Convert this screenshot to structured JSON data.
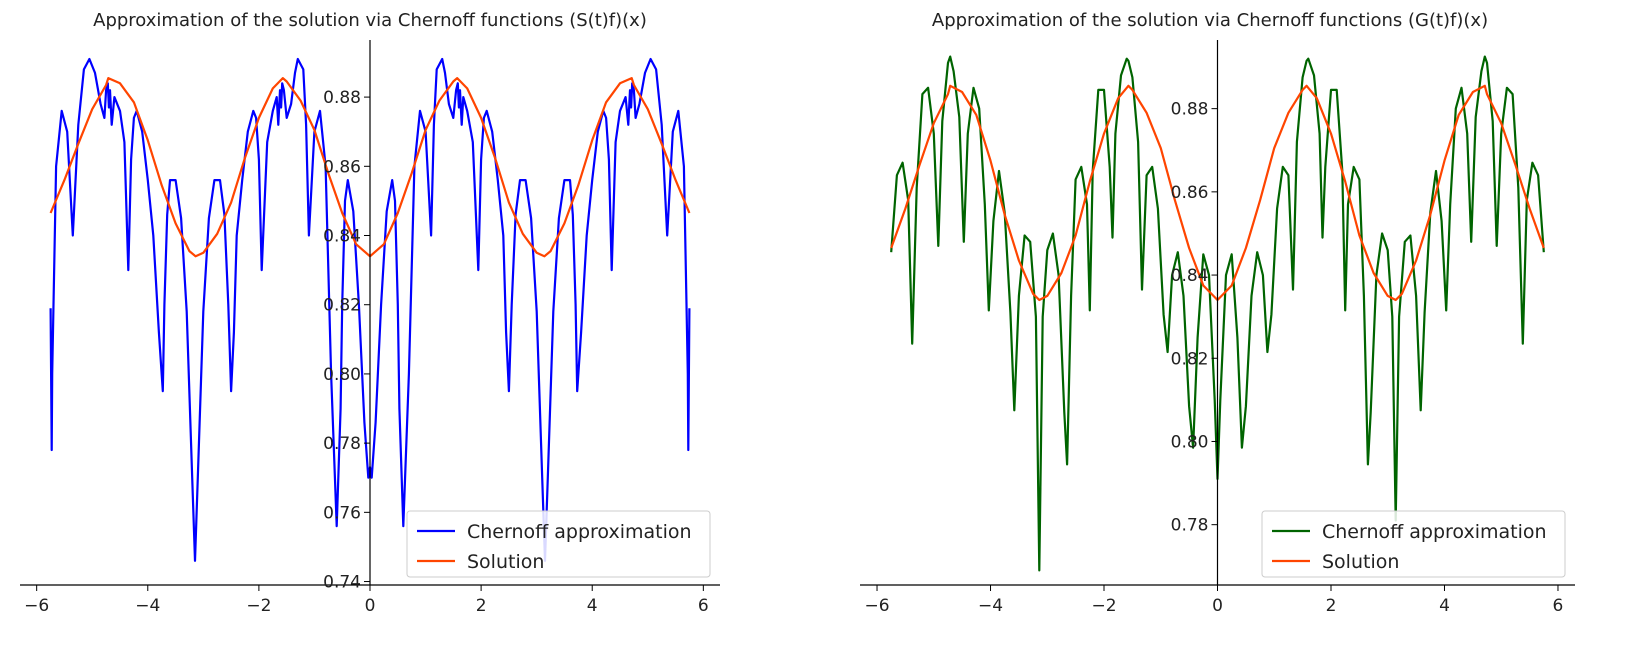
{
  "chart_data": [
    {
      "type": "line",
      "title": "Approximation of the solution via Chernoff functions (S(t)f)(x)",
      "xlim": [
        -6.3,
        6.3
      ],
      "ylim": [
        0.739,
        0.8965
      ],
      "x_ticks": [
        -6,
        -4,
        -2,
        0,
        2,
        4,
        6
      ],
      "x_tick_labels": [
        "−6",
        "−4",
        "−2",
        "0",
        "2",
        "4",
        "6"
      ],
      "y_ticks": [
        0.74,
        0.76,
        0.78,
        0.8,
        0.82,
        0.84,
        0.86,
        0.88
      ],
      "y_tick_labels": [
        "0.74",
        "0.76",
        "0.78",
        "0.80",
        "0.82",
        "0.84",
        "0.86",
        "0.88"
      ],
      "grid": false,
      "legend_location": "lower right",
      "series": [
        {
          "name": "Chernoff approximation",
          "color": "#0000ff",
          "x": [
            -5.75,
            -5.73,
            -5.72,
            -5.65,
            -5.55,
            -5.45,
            -5.35,
            -5.25,
            -5.15,
            -5.05,
            -4.95,
            -4.85,
            -4.78,
            -4.75,
            -4.72,
            -4.7,
            -4.68,
            -4.65,
            -4.6,
            -4.5,
            -4.42,
            -4.35,
            -4.3,
            -4.25,
            -4.2,
            -4.1,
            -4.0,
            -3.9,
            -3.8,
            -3.73,
            -3.7,
            -3.65,
            -3.6,
            -3.5,
            -3.4,
            -3.3,
            -3.2,
            -3.15,
            -3.1,
            -3.0,
            -2.9,
            -2.8,
            -2.7,
            -2.62,
            -2.55,
            -2.5,
            -2.45,
            -2.4,
            -2.3,
            -2.2,
            -2.1,
            -2.05,
            -2.0,
            -1.95,
            -1.85,
            -1.75,
            -1.68,
            -1.65,
            -1.62,
            -1.6,
            -1.58,
            -1.55,
            -1.5,
            -1.42,
            -1.35,
            -1.3,
            -1.2,
            -1.15,
            -1.1,
            -1.0,
            -0.9,
            -0.8,
            -0.7,
            -0.6,
            -0.53,
            -0.5,
            -0.45,
            -0.4,
            -0.3,
            -0.2,
            -0.1,
            -0.03,
            0.0,
            0.03,
            0.1,
            0.2,
            0.3,
            0.4,
            0.45,
            0.5,
            0.53,
            0.6,
            0.7,
            0.8,
            0.9,
            1.0,
            1.1,
            1.15,
            1.2,
            1.3,
            1.35,
            1.42,
            1.5,
            1.55,
            1.58,
            1.6,
            1.62,
            1.65,
            1.68,
            1.75,
            1.85,
            1.95,
            2.0,
            2.05,
            2.1,
            2.2,
            2.3,
            2.4,
            2.45,
            2.5,
            2.55,
            2.62,
            2.7,
            2.8,
            2.9,
            3.0,
            3.1,
            3.15,
            3.2,
            3.3,
            3.4,
            3.5,
            3.6,
            3.65,
            3.7,
            3.73,
            3.8,
            3.9,
            4.0,
            4.1,
            4.2,
            4.25,
            4.3,
            4.35,
            4.42,
            4.5,
            4.6,
            4.65,
            4.68,
            4.7,
            4.72,
            4.75,
            4.78,
            4.85,
            4.95,
            5.05,
            5.15,
            5.25,
            5.35,
            5.45,
            5.55,
            5.65,
            5.72,
            5.73,
            5.75
          ],
          "y": [
            0.819,
            0.778,
            0.8,
            0.86,
            0.876,
            0.87,
            0.84,
            0.872,
            0.888,
            0.891,
            0.887,
            0.878,
            0.874,
            0.882,
            0.884,
            0.877,
            0.882,
            0.872,
            0.88,
            0.876,
            0.867,
            0.83,
            0.862,
            0.874,
            0.876,
            0.87,
            0.856,
            0.84,
            0.812,
            0.795,
            0.82,
            0.846,
            0.856,
            0.856,
            0.845,
            0.818,
            0.77,
            0.746,
            0.77,
            0.818,
            0.845,
            0.856,
            0.856,
            0.846,
            0.82,
            0.795,
            0.812,
            0.84,
            0.856,
            0.87,
            0.876,
            0.874,
            0.862,
            0.83,
            0.867,
            0.876,
            0.88,
            0.872,
            0.882,
            0.877,
            0.884,
            0.882,
            0.874,
            0.878,
            0.887,
            0.891,
            0.888,
            0.872,
            0.84,
            0.87,
            0.876,
            0.86,
            0.8,
            0.756,
            0.79,
            0.82,
            0.85,
            0.856,
            0.847,
            0.82,
            0.786,
            0.77,
            0.773,
            0.77,
            0.786,
            0.82,
            0.847,
            0.856,
            0.85,
            0.82,
            0.79,
            0.756,
            0.8,
            0.86,
            0.876,
            0.87,
            0.84,
            0.872,
            0.888,
            0.891,
            0.887,
            0.878,
            0.874,
            0.882,
            0.884,
            0.877,
            0.882,
            0.872,
            0.88,
            0.876,
            0.867,
            0.83,
            0.862,
            0.874,
            0.876,
            0.87,
            0.856,
            0.84,
            0.812,
            0.795,
            0.82,
            0.846,
            0.856,
            0.856,
            0.845,
            0.818,
            0.77,
            0.746,
            0.77,
            0.818,
            0.845,
            0.856,
            0.856,
            0.846,
            0.82,
            0.795,
            0.812,
            0.84,
            0.856,
            0.87,
            0.876,
            0.874,
            0.862,
            0.83,
            0.867,
            0.876,
            0.88,
            0.872,
            0.882,
            0.877,
            0.884,
            0.882,
            0.874,
            0.878,
            0.887,
            0.891,
            0.888,
            0.872,
            0.84,
            0.87,
            0.876,
            0.86,
            0.8,
            0.778,
            0.819
          ]
        },
        {
          "name": "Solution",
          "color": "#ff4500",
          "x": [
            -5.75,
            -5.5,
            -5.25,
            -5.0,
            -4.75,
            -4.71,
            -4.5,
            -4.25,
            -4.0,
            -3.75,
            -3.5,
            -3.25,
            -3.14,
            -3.0,
            -2.75,
            -2.5,
            -2.25,
            -2.0,
            -1.75,
            -1.57,
            -1.5,
            -1.25,
            -1.0,
            -0.75,
            -0.5,
            -0.25,
            0.0,
            0.25,
            0.5,
            0.75,
            1.0,
            1.25,
            1.5,
            1.57,
            1.75,
            2.0,
            2.25,
            2.5,
            2.75,
            3.0,
            3.14,
            3.25,
            3.5,
            3.75,
            4.0,
            4.25,
            4.5,
            4.71,
            4.75,
            5.0,
            5.25,
            5.5,
            5.75
          ],
          "y": [
            0.8465,
            0.856,
            0.8665,
            0.8765,
            0.8835,
            0.8855,
            0.884,
            0.8785,
            0.8675,
            0.8545,
            0.8435,
            0.8355,
            0.834,
            0.835,
            0.8405,
            0.8495,
            0.8625,
            0.874,
            0.8825,
            0.8855,
            0.8845,
            0.879,
            0.8705,
            0.858,
            0.8465,
            0.8375,
            0.834,
            0.8375,
            0.8465,
            0.858,
            0.8705,
            0.879,
            0.8845,
            0.8855,
            0.8825,
            0.874,
            0.8625,
            0.8495,
            0.8405,
            0.835,
            0.834,
            0.8355,
            0.8435,
            0.8545,
            0.8675,
            0.8785,
            0.884,
            0.8855,
            0.8835,
            0.8765,
            0.8665,
            0.856,
            0.8465
          ]
        }
      ]
    },
    {
      "type": "line",
      "title": "Approximation of the solution via Chernoff functions (G(t)f)(x)",
      "xlim": [
        -6.3,
        6.3
      ],
      "ylim": [
        0.7655,
        0.8965
      ],
      "x_ticks": [
        -6,
        -4,
        -2,
        0,
        2,
        4,
        6
      ],
      "x_tick_labels": [
        "−6",
        "−4",
        "−2",
        "0",
        "2",
        "4",
        "6"
      ],
      "y_ticks": [
        0.78,
        0.8,
        0.82,
        0.84,
        0.86,
        0.88
      ],
      "y_tick_labels": [
        "0.78",
        "0.80",
        "0.82",
        "0.84",
        "0.86",
        "0.88"
      ],
      "grid": false,
      "legend_location": "lower right",
      "series": [
        {
          "name": "Chernoff approximation",
          "color": "#006400",
          "x": [
            -5.75,
            -5.65,
            -5.55,
            -5.45,
            -5.38,
            -5.3,
            -5.2,
            -5.1,
            -5.0,
            -4.92,
            -4.85,
            -4.75,
            -4.71,
            -4.65,
            -4.55,
            -4.47,
            -4.4,
            -4.3,
            -4.2,
            -4.1,
            -4.03,
            -3.95,
            -3.85,
            -3.75,
            -3.65,
            -3.58,
            -3.5,
            -3.4,
            -3.3,
            -3.2,
            -3.14,
            -3.08,
            -3.0,
            -2.9,
            -2.8,
            -2.7,
            -2.65,
            -2.58,
            -2.5,
            -2.4,
            -2.3,
            -2.25,
            -2.2,
            -2.1,
            -2.0,
            -1.9,
            -1.85,
            -1.8,
            -1.7,
            -1.6,
            -1.57,
            -1.5,
            -1.4,
            -1.33,
            -1.25,
            -1.15,
            -1.05,
            -0.95,
            -0.88,
            -0.8,
            -0.7,
            -0.6,
            -0.5,
            -0.43,
            -0.35,
            -0.25,
            -0.15,
            -0.05,
            0.0,
            0.05,
            0.15,
            0.25,
            0.35,
            0.43,
            0.5,
            0.6,
            0.7,
            0.8,
            0.88,
            0.95,
            1.05,
            1.15,
            1.25,
            1.33,
            1.4,
            1.5,
            1.57,
            1.6,
            1.7,
            1.8,
            1.85,
            1.9,
            2.0,
            2.1,
            2.2,
            2.25,
            2.3,
            2.4,
            2.5,
            2.58,
            2.65,
            2.7,
            2.8,
            2.9,
            3.0,
            3.08,
            3.14,
            3.2,
            3.3,
            3.4,
            3.5,
            3.58,
            3.65,
            3.75,
            3.85,
            3.95,
            4.03,
            4.1,
            4.2,
            4.3,
            4.4,
            4.47,
            4.55,
            4.65,
            4.71,
            4.75,
            4.85,
            4.92,
            5.0,
            5.1,
            5.2,
            5.3,
            5.38,
            5.45,
            5.55,
            5.65,
            5.75
          ],
          "y": [
            0.8455,
            0.864,
            0.867,
            0.858,
            0.8235,
            0.861,
            0.8835,
            0.885,
            0.874,
            0.847,
            0.877,
            0.891,
            0.8925,
            0.889,
            0.878,
            0.848,
            0.874,
            0.885,
            0.88,
            0.857,
            0.8315,
            0.853,
            0.865,
            0.855,
            0.831,
            0.8075,
            0.835,
            0.8495,
            0.848,
            0.83,
            0.769,
            0.83,
            0.846,
            0.85,
            0.84,
            0.807,
            0.7945,
            0.835,
            0.863,
            0.866,
            0.857,
            0.8315,
            0.865,
            0.8845,
            0.8845,
            0.866,
            0.849,
            0.874,
            0.888,
            0.892,
            0.8915,
            0.8875,
            0.872,
            0.8365,
            0.864,
            0.866,
            0.856,
            0.8305,
            0.8215,
            0.84,
            0.8455,
            0.835,
            0.8085,
            0.7985,
            0.825,
            0.845,
            0.84,
            0.81,
            0.791,
            0.81,
            0.84,
            0.845,
            0.825,
            0.7985,
            0.8085,
            0.835,
            0.8455,
            0.84,
            0.8215,
            0.8305,
            0.856,
            0.866,
            0.864,
            0.8365,
            0.872,
            0.8875,
            0.8915,
            0.892,
            0.888,
            0.874,
            0.849,
            0.866,
            0.8845,
            0.8845,
            0.865,
            0.8315,
            0.857,
            0.866,
            0.863,
            0.835,
            0.7945,
            0.807,
            0.84,
            0.85,
            0.846,
            0.83,
            0.781,
            0.83,
            0.848,
            0.8495,
            0.835,
            0.8075,
            0.831,
            0.855,
            0.865,
            0.853,
            0.8315,
            0.857,
            0.88,
            0.885,
            0.874,
            0.848,
            0.878,
            0.889,
            0.8925,
            0.891,
            0.877,
            0.847,
            0.874,
            0.885,
            0.8835,
            0.861,
            0.8235,
            0.858,
            0.867,
            0.864,
            0.8455
          ]
        },
        {
          "name": "Solution",
          "color": "#ff4500",
          "x": [
            -5.75,
            -5.5,
            -5.25,
            -5.0,
            -4.75,
            -4.71,
            -4.5,
            -4.25,
            -4.0,
            -3.75,
            -3.5,
            -3.25,
            -3.14,
            -3.0,
            -2.75,
            -2.5,
            -2.25,
            -2.0,
            -1.75,
            -1.57,
            -1.5,
            -1.25,
            -1.0,
            -0.75,
            -0.5,
            -0.25,
            0.0,
            0.25,
            0.5,
            0.75,
            1.0,
            1.25,
            1.5,
            1.57,
            1.75,
            2.0,
            2.25,
            2.5,
            2.75,
            3.0,
            3.14,
            3.25,
            3.5,
            3.75,
            4.0,
            4.25,
            4.5,
            4.71,
            4.75,
            5.0,
            5.25,
            5.5,
            5.75
          ],
          "y": [
            0.8465,
            0.856,
            0.8665,
            0.8765,
            0.8835,
            0.8855,
            0.884,
            0.8785,
            0.8675,
            0.8545,
            0.8435,
            0.8355,
            0.834,
            0.835,
            0.8405,
            0.8495,
            0.8625,
            0.874,
            0.8825,
            0.8855,
            0.8845,
            0.879,
            0.8705,
            0.858,
            0.8465,
            0.8375,
            0.834,
            0.8375,
            0.8465,
            0.858,
            0.8705,
            0.879,
            0.8845,
            0.8855,
            0.8825,
            0.874,
            0.8625,
            0.8495,
            0.8405,
            0.835,
            0.834,
            0.8355,
            0.8435,
            0.8545,
            0.8675,
            0.8785,
            0.884,
            0.8855,
            0.8835,
            0.8765,
            0.8665,
            0.856,
            0.8465
          ]
        }
      ]
    }
  ]
}
